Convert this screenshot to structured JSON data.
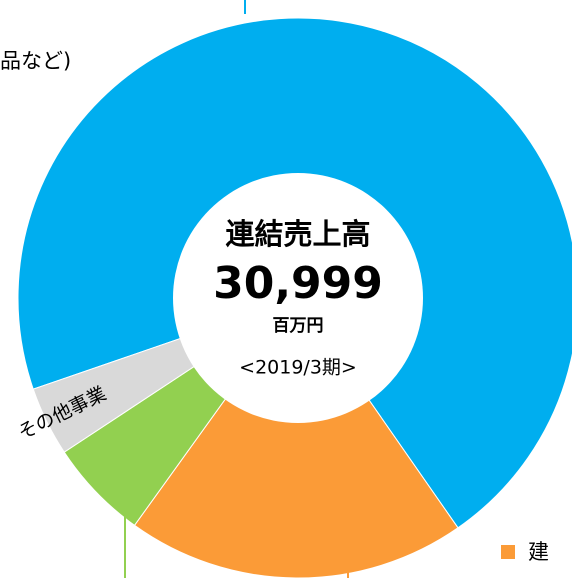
{
  "chart_data": {
    "type": "donut",
    "categories": [
      null,
      null,
      null,
      "その他事業"
    ],
    "values": [
      70.6,
      19.6,
      5.8,
      4.0
    ],
    "colors": [
      "#00aeef",
      "#fb9b37",
      "#92d050",
      "#d9d9d9"
    ],
    "center_text": [
      "連結売上高",
      "30,999",
      "百万円",
      "<2019/3期>"
    ],
    "annotations": [
      "品など)",
      "建"
    ]
  }
}
